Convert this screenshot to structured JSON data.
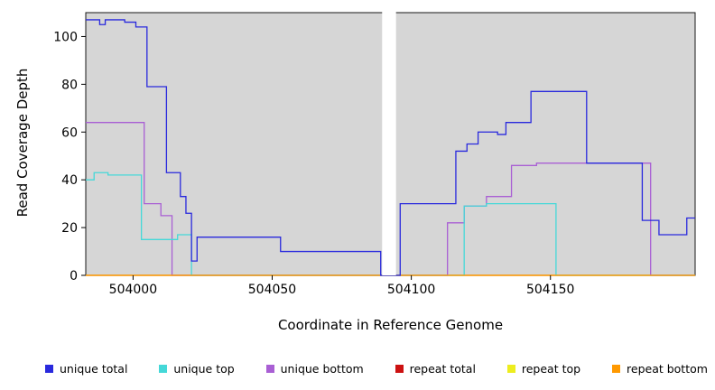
{
  "chart_data": {
    "type": "line",
    "step": true,
    "title": "",
    "xlabel": "Coordinate in Reference Genome",
    "ylabel": "Read Coverage Depth",
    "xlim": [
      503983,
      504202
    ],
    "ylim": [
      0,
      110
    ],
    "x_ticks": [
      504000,
      504050,
      504100,
      504150
    ],
    "y_ticks": [
      0,
      20,
      40,
      60,
      80,
      100
    ],
    "grid": false,
    "plot_background": "#d6d6d6",
    "page_background": "#ffffff",
    "axis_color": "#000000",
    "gap_band": {
      "from": 504089.5,
      "to": 504094.5,
      "color": "#ffffff"
    },
    "legend_position": "bottom",
    "series": [
      {
        "name": "unique total",
        "color": "#2929dd",
        "points": [
          [
            503983,
            107
          ],
          [
            503988,
            105
          ],
          [
            503990,
            107
          ],
          [
            503997,
            106
          ],
          [
            504001,
            104
          ],
          [
            504005,
            79
          ],
          [
            504012,
            43
          ],
          [
            504017,
            33
          ],
          [
            504019,
            26
          ],
          [
            504021,
            6
          ],
          [
            504023,
            16
          ],
          [
            504053,
            10
          ],
          [
            504089,
            0
          ],
          [
            504096,
            30
          ],
          [
            504116,
            52
          ],
          [
            504120,
            55
          ],
          [
            504124,
            60
          ],
          [
            504131,
            59
          ],
          [
            504134,
            64
          ],
          [
            504143,
            77
          ],
          [
            504163,
            47
          ],
          [
            504183,
            23
          ],
          [
            504189,
            17
          ],
          [
            504199,
            24
          ]
        ]
      },
      {
        "name": "unique top",
        "color": "#45d8d8",
        "points": [
          [
            503983,
            40
          ],
          [
            503986,
            43
          ],
          [
            503991,
            42
          ],
          [
            504003,
            15
          ],
          [
            504016,
            17
          ],
          [
            504021,
            0
          ],
          [
            504119,
            29
          ],
          [
            504127,
            30
          ],
          [
            504152,
            0
          ]
        ]
      },
      {
        "name": "unique bottom",
        "color": "#a95fd4",
        "points": [
          [
            503983,
            64
          ],
          [
            504004,
            30
          ],
          [
            504010,
            25
          ],
          [
            504014,
            0
          ],
          [
            504113,
            22
          ],
          [
            504119,
            29
          ],
          [
            504127,
            33
          ],
          [
            504136,
            46
          ],
          [
            504145,
            47
          ],
          [
            504186,
            0
          ]
        ]
      },
      {
        "name": "repeat total",
        "color": "#cc1111",
        "points": [
          [
            503983,
            0
          ]
        ]
      },
      {
        "name": "repeat top",
        "color": "#eded1f",
        "points": [
          [
            503983,
            0
          ]
        ]
      },
      {
        "name": "repeat bottom",
        "color": "#ff9900",
        "points": [
          [
            503983,
            0
          ]
        ]
      }
    ],
    "draw_order": [
      3,
      4,
      2,
      1,
      5,
      0
    ]
  }
}
